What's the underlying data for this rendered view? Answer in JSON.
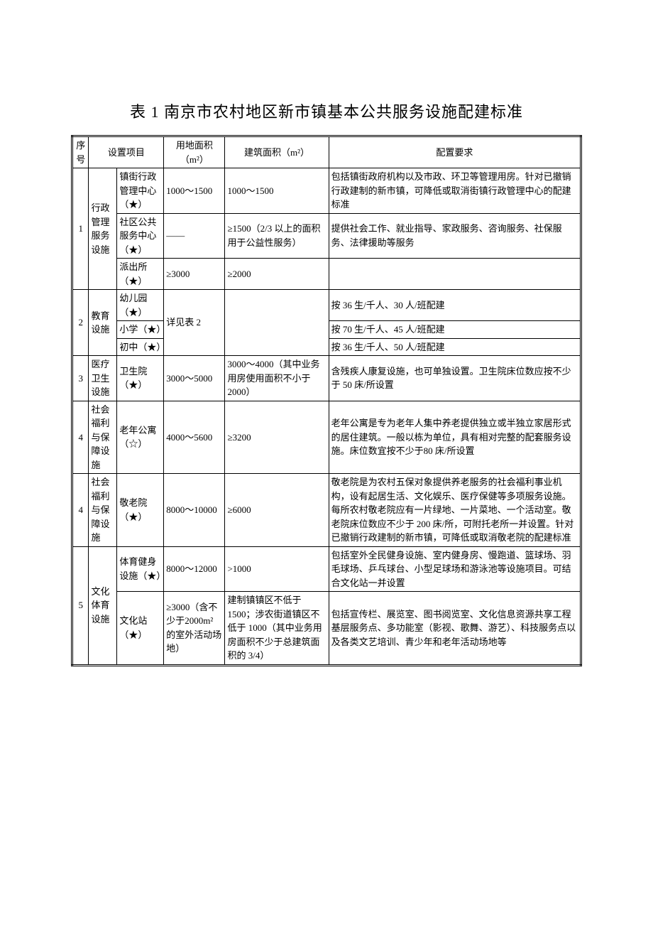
{
  "title": "表 1  南京市农村地区新市镇基本公共服务设施配建标准",
  "headers": {
    "seq": "序号",
    "item": "设置项目",
    "land": "用地面积（m²）",
    "floor": "建筑面积（m²）",
    "req": "配置要求"
  },
  "rows": {
    "r1": {
      "seq": "1",
      "cat": "行政管理服务设施",
      "a_name": "镇街行政管理中心（★）",
      "a_land": "1000～1500",
      "a_floor": "1000～1500",
      "a_req": "包括镇街政府机构以及市政、环卫等管理用房。针对已撤销行政建制的新市镇，可降低或取消街镇行政管理中心的配建标准",
      "b_name": "社区公共服务中心（★）",
      "b_land": "——",
      "b_floor": "≥1500（2/3 以上的面积用于公益性服务）",
      "b_req": "提供社会工作、就业指导、家政服务、咨询服务、社保服务、法律援助等服务",
      "c_name": "派出所（★）",
      "c_land": "≥3000",
      "c_floor": "≥2000",
      "c_req": ""
    },
    "r2": {
      "seq": "2",
      "cat": "教育设施",
      "a_name": "幼儿园（★）",
      "land": "详见表 2",
      "floor": "",
      "a_req": "按 36 生/千人、30 人/班配建",
      "b_name": "小学（★）",
      "b_req": "按 70 生/千人、45 人/班配建",
      "c_name": "初中（★）",
      "c_req": "按 36 生/千人、50 人/班配建"
    },
    "r3": {
      "seq": "3",
      "cat": "医疗卫生设施",
      "name": "卫生院（★）",
      "land": "3000～5000",
      "floor": "3000～4000（其中业务用房使用面积不小于 2000）",
      "req": "含残疾人康复设施，也可单独设置。卫生院床位数应按不少于 50 床/所设置"
    },
    "r4a": {
      "seq": "4",
      "cat": "社会福利与保障设施",
      "name": "老年公寓（☆）",
      "land": "4000～5600",
      "floor": "≥3200",
      "req": "老年公寓是专为老年人集中养老提供独立或半独立家居形式的居住建筑。一般以栋为单位，具有相对完整的配套服务设施。床位数宜按不少于80 床/所设置"
    },
    "r4b": {
      "seq": "4",
      "cat": "社会福利与保障设施",
      "name": "敬老院（★）",
      "land": "8000～10000",
      "floor": "≥6000",
      "req": "敬老院是为农村五保对象提供养老服务的社会福利事业机构，设有起居生活、文化娱乐、医疗保健等多项服务设施。每所农村敬老院应有一片绿地、一片菜地、一个活动室。敬老院床位数应不少于 200 床/所，可附托老所一并设置。针对已撤销行政建制的新市镇，可降低或取消敬老院的配建标准"
    },
    "r5": {
      "seq": "5",
      "cat": "文化体育设施",
      "a_name": "体育健身设施（★）",
      "a_land": "8000～12000",
      "a_floor": ">1000",
      "a_req": "包括室外全民健身设施、室内健身房、慢跑道、篮球场、羽毛球场、乒乓球台、小型足球场和游泳池等设施项目。可结合文化站一并设置",
      "b_name": "文化站（★）",
      "b_land": "≥3000（含不少于2000m² 的室外活动场地）",
      "b_floor": "建制镇镇区不低于 1500；涉农街道镇区不低于 1000（其中业务用房面积不少于总建筑面积的 3/4）",
      "b_req": "包括宣传栏、展览室、图书阅览室、文化信息资源共享工程基层服务点、多功能室（影视、歌舞、游艺）、科技服务点以及各类文艺培训、青少年和老年活动场地等"
    }
  }
}
